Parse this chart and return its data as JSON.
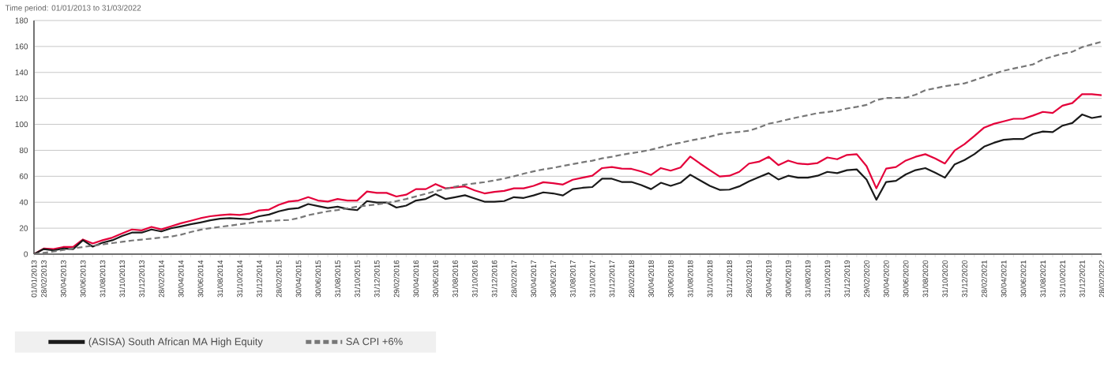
{
  "chart_data": {
    "type": "line",
    "title": "Time period: 01/01/2013 to 31/03/2022",
    "categories": [
      "01/01/2013",
      "28/02/2013",
      null,
      "30/04/2013",
      null,
      "30/06/2013",
      null,
      "31/08/2013",
      null,
      "31/10/2013",
      null,
      "31/12/2013",
      null,
      "28/02/2014",
      null,
      "30/04/2014",
      null,
      "30/06/2014",
      null,
      "31/08/2014",
      null,
      "31/10/2014",
      null,
      "31/12/2014",
      null,
      "28/02/2015",
      null,
      "30/04/2015",
      null,
      "30/06/2015",
      null,
      "31/08/2015",
      null,
      "31/10/2015",
      null,
      "31/12/2015",
      null,
      "29/02/2016",
      null,
      "30/04/2016",
      null,
      "30/06/2016",
      null,
      "31/08/2016",
      null,
      "31/10/2016",
      null,
      "31/12/2016",
      null,
      "28/02/2017",
      null,
      "30/04/2017",
      null,
      "30/06/2017",
      null,
      "31/08/2017",
      null,
      "31/10/2017",
      null,
      "31/12/2017",
      null,
      "28/02/2018",
      null,
      "30/04/2018",
      null,
      "30/06/2018",
      null,
      "31/08/2018",
      null,
      "31/10/2018",
      null,
      "31/12/2018",
      null,
      "28/02/2019",
      null,
      "30/04/2019",
      null,
      "30/06/2019",
      null,
      "31/08/2019",
      null,
      "31/10/2019",
      null,
      "31/12/2019",
      null,
      "29/02/2020",
      null,
      "30/04/2020",
      null,
      "30/06/2020",
      null,
      "31/08/2020",
      null,
      "31/10/2020",
      null,
      "31/12/2020",
      null,
      "28/02/2021",
      null,
      "30/04/2021",
      null,
      "30/06/2021",
      null,
      "31/08/2021",
      null,
      "31/10/2021",
      null,
      "31/12/2021",
      null,
      "28/02/2022"
    ],
    "series": [
      {
        "color": "#e4003a",
        "values": [
          0,
          4.3,
          3.9,
          5.5,
          5.5,
          11.3,
          8.2,
          10.7,
          12.7,
          16,
          19,
          18.3,
          21,
          19.1,
          21.4,
          23.8,
          25.7,
          27.7,
          29.2,
          30,
          30.6,
          30.2,
          31.2,
          33.7,
          34.3,
          38,
          40.5,
          41.3,
          43.9,
          41.3,
          40.5,
          42.5,
          41.3,
          41.3,
          48.3,
          47.2,
          47.2,
          44.4,
          45.8,
          50.1,
          50.1,
          54,
          50.7,
          51.5,
          52.2,
          49.1,
          46.8,
          48,
          48.7,
          50.7,
          50.7,
          52.6,
          55.4,
          54.6,
          53.6,
          57.3,
          58.9,
          60.4,
          66.3,
          67.1,
          65.9,
          65.7,
          63.7,
          61,
          66.3,
          64.3,
          66.7,
          75.2,
          69.8,
          64.7,
          59.8,
          60.4,
          63.4,
          69.8,
          71.2,
          75,
          68.6,
          72.1,
          69.8,
          69.2,
          70.2,
          74.5,
          73.1,
          76.4,
          77,
          67.8,
          50.7,
          65.9,
          67.1,
          72.1,
          75,
          77,
          73.7,
          69.8,
          79.9,
          84.8,
          91,
          97.5,
          100.4,
          102.3,
          104.3,
          104.3,
          106.8,
          109.6,
          108.8,
          114.4,
          116.4,
          123.2,
          123.2,
          122.4
        ]
      },
      {
        "name": "(ASISA) South African MA High Equity",
        "color": "#1a1a1a",
        "values": [
          0,
          3.9,
          2.9,
          4.3,
          3.9,
          10.7,
          5.8,
          8.8,
          10.7,
          14,
          16.6,
          16.6,
          19,
          17.5,
          19.9,
          21.4,
          23,
          24.4,
          26.1,
          27.3,
          27.7,
          27.3,
          26.9,
          29.2,
          30.5,
          33,
          34.7,
          35.5,
          38.6,
          37,
          35.5,
          36.6,
          34.7,
          33.9,
          40.9,
          39.8,
          39.8,
          35.9,
          37.4,
          41.3,
          42.5,
          46.2,
          42.5,
          43.9,
          45.4,
          42.9,
          40.4,
          40.4,
          40.9,
          43.9,
          43.3,
          45.2,
          47.6,
          46.8,
          45.2,
          50.1,
          51.1,
          51.7,
          58.1,
          58.1,
          55.6,
          55.6,
          53.2,
          50.1,
          55,
          52.6,
          55,
          61.2,
          56.9,
          52.6,
          49.5,
          49.7,
          52.2,
          56.1,
          59.3,
          62.4,
          57.5,
          60.4,
          58.9,
          58.9,
          60.4,
          63.4,
          62.4,
          64.7,
          65.3,
          57.5,
          41.9,
          55.6,
          56.5,
          61.4,
          64.7,
          66.3,
          62.8,
          58.9,
          69.2,
          72.5,
          77,
          82.8,
          85.8,
          88.1,
          88.7,
          88.7,
          92.6,
          94.5,
          94,
          99,
          101,
          107.6,
          104.9,
          106.2
        ]
      },
      {
        "name": "SA CPI +6%",
        "color": "#777777",
        "line_style": "dashed",
        "values": [
          0,
          1,
          2,
          3.2,
          4.5,
          5.5,
          6.5,
          7.5,
          8.5,
          9.5,
          10.5,
          11.2,
          12,
          12.8,
          13.5,
          15,
          17,
          18.8,
          20,
          21,
          22,
          23,
          24,
          25,
          25.5,
          26,
          26.3,
          27.7,
          30,
          31.5,
          33,
          34,
          35.2,
          36.6,
          37.5,
          38.3,
          39.5,
          40.8,
          42.5,
          44.5,
          46.5,
          48.5,
          50.3,
          52,
          53.6,
          54.5,
          55.5,
          56.8,
          58.2,
          60,
          62,
          63.8,
          65.3,
          66.5,
          68,
          69.4,
          70.8,
          72,
          73.8,
          75,
          76.6,
          77.8,
          79,
          80.5,
          82.4,
          84.4,
          85.8,
          87.5,
          88.9,
          90.5,
          92.5,
          93.5,
          94.2,
          95.1,
          97.5,
          100.5,
          102,
          103.8,
          105.5,
          107,
          108.7,
          109.5,
          110.5,
          112.2,
          113.5,
          115,
          118.7,
          120.3,
          120.4,
          120.5,
          122.8,
          126.3,
          127.8,
          129.4,
          130.5,
          131.6,
          134,
          136.5,
          139,
          141.3,
          143,
          144.6,
          146.2,
          150.1,
          152.3,
          154.4,
          155.9,
          159.5,
          161.6,
          163.7
        ]
      }
    ],
    "ylim": [
      0,
      180
    ],
    "yticks": [
      0,
      20,
      40,
      60,
      80,
      100,
      120,
      140,
      160,
      180
    ],
    "grid": "y",
    "legend": "bottom"
  }
}
